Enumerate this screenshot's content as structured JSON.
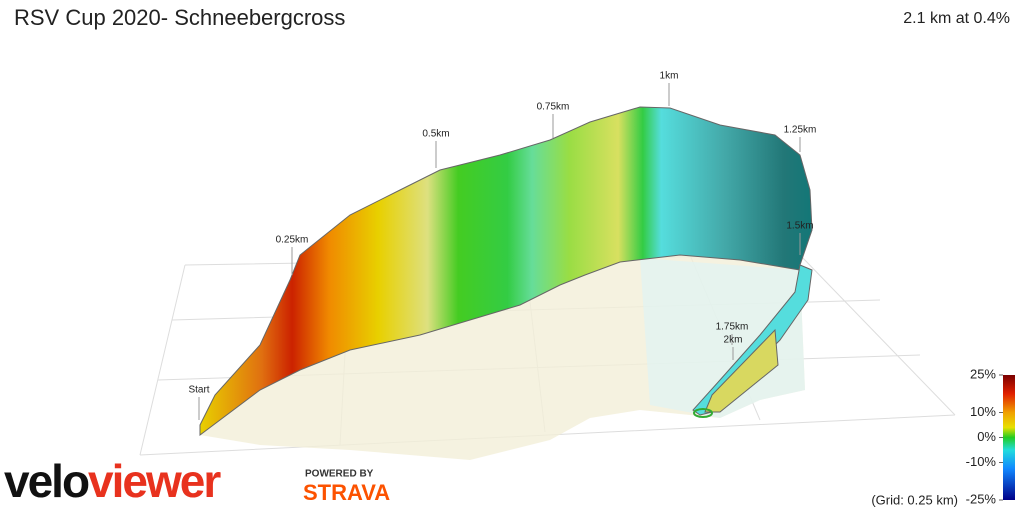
{
  "header": {
    "title": "RSV Cup 2020- Schneebergcross",
    "summary": "2.1 km at 0.4%"
  },
  "markers": [
    "Start",
    "0.25km",
    "0.5km",
    "0.75km",
    "1km",
    "1.25km",
    "1.5km",
    "1.75km",
    "2km"
  ],
  "gradient_scale": {
    "range": [
      -25,
      25
    ],
    "ticks": [
      {
        "value": 25,
        "label": "25%"
      },
      {
        "value": 10,
        "label": "10%"
      },
      {
        "value": 0,
        "label": "0%"
      },
      {
        "value": -10,
        "label": "-10%"
      },
      {
        "value": -25,
        "label": "-25%"
      }
    ]
  },
  "grid_note": "(Grid: 0.25 km)",
  "branding": {
    "logo_part1": "velo",
    "logo_part2": "viewer",
    "powered_by": "POWERED BY",
    "strava": "STRAVA"
  }
}
